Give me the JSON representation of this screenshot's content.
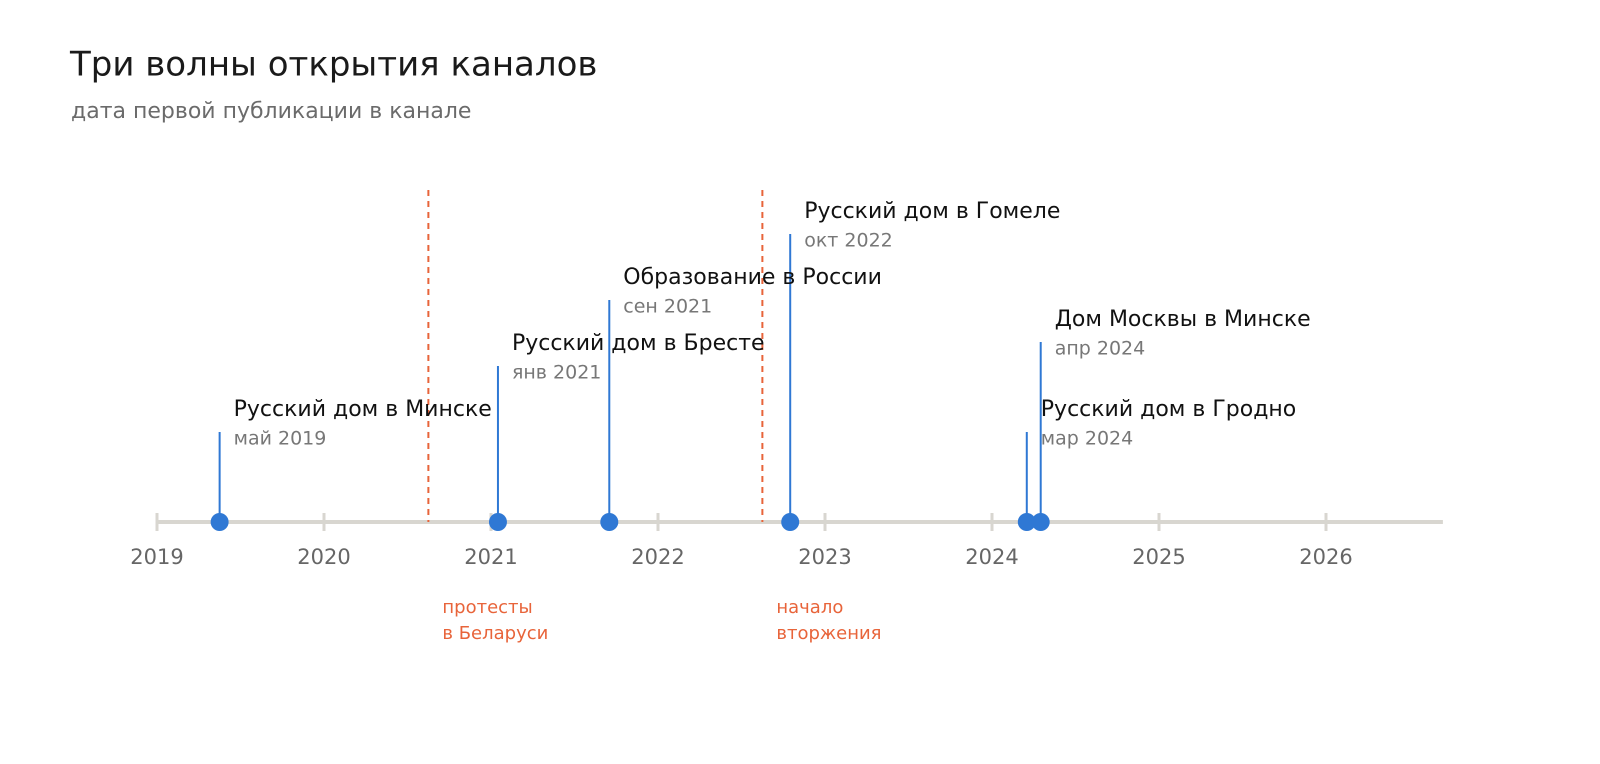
{
  "chart_data": {
    "type": "timeline",
    "title": "Три волны открытия каналов",
    "subtitle": "дата первой публикации в канале",
    "x": [
      "2019-05",
      "2021-01",
      "2021-09",
      "2022-10",
      "2024-03",
      "2024-04"
    ],
    "names": [
      "Русский дом в Минске",
      "Русский дом в Бресте",
      "Образование в России",
      "Русский дом в Гомеле",
      "Русский дом в Гродно",
      "Дом Москвы в Минске"
    ],
    "x_labels": [
      "май 2019",
      "янв 2021",
      "сен 2021",
      "окт 2022",
      "мар 2024",
      "апр 2024"
    ],
    "color": "#2f78d4",
    "xlim": [
      2019,
      2026.7
    ],
    "xticks": [
      2019,
      2020,
      2021,
      2022,
      2023,
      2024,
      2025,
      2026
    ],
    "markers": [
      {
        "x": "2020-08",
        "label": [
          "протесты",
          "в Беларуси"
        ]
      },
      {
        "x": "2022-08",
        "label": [
          "начало",
          "вторжения"
        ]
      }
    ],
    "marker_color": "#e8643a"
  }
}
